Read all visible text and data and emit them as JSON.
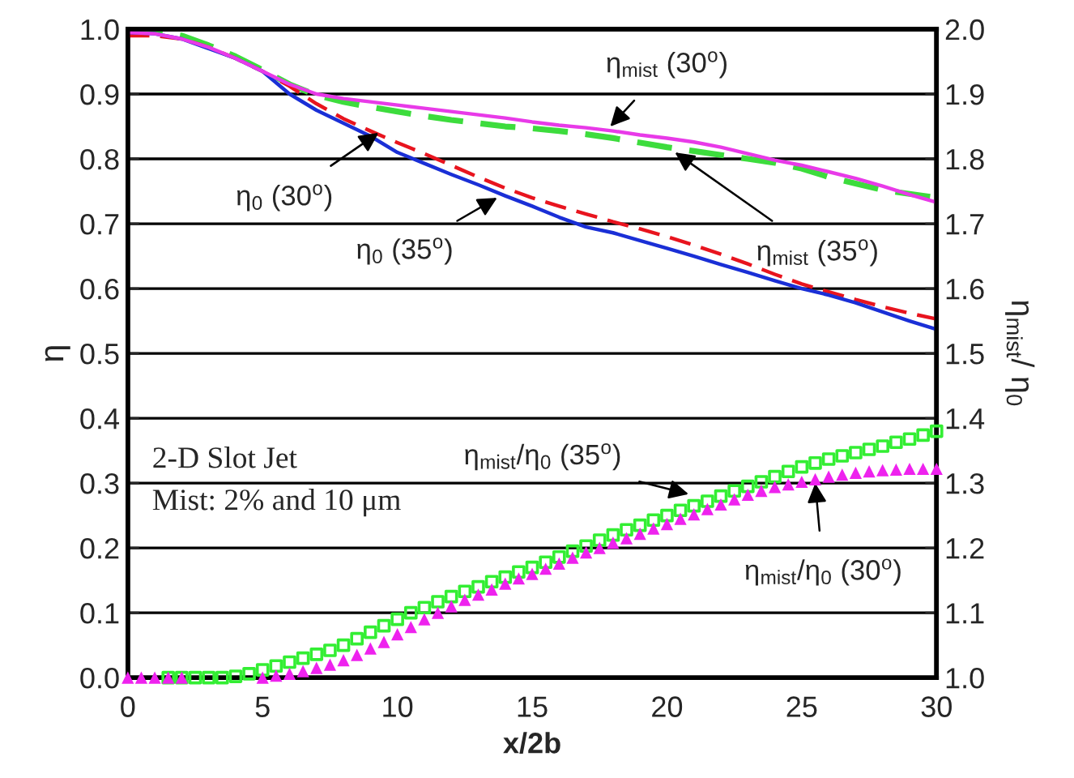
{
  "chart_data": {
    "type": "line",
    "xlabel": "x/2b",
    "ylabel": "η",
    "y2label": "η$_{mist}$/ η$_{0}$",
    "xlim": [
      0,
      30
    ],
    "xticks": [
      0,
      5,
      10,
      15,
      20,
      25,
      30
    ],
    "ylim": [
      0,
      1
    ],
    "yticks": [
      {
        "value": 0,
        "label": "0.0"
      },
      {
        "value": 0.1,
        "label": "0.1"
      },
      {
        "value": 0.2,
        "label": "0.2"
      },
      {
        "value": 0.3,
        "label": "0.3"
      },
      {
        "value": 0.4,
        "label": "0.4"
      },
      {
        "value": 0.5,
        "label": "0.5"
      },
      {
        "value": 0.6,
        "label": "0.6"
      },
      {
        "value": 0.7,
        "label": "0.7"
      },
      {
        "value": 0.8,
        "label": "0.8"
      },
      {
        "value": 0.9,
        "label": "0.9"
      },
      {
        "value": 1,
        "label": "1.0"
      }
    ],
    "y2lim": [
      1,
      2
    ],
    "y2ticks": [
      {
        "value": 1,
        "label": "1.0"
      },
      {
        "value": 1.1,
        "label": "1.1"
      },
      {
        "value": 1.2,
        "label": "1.2"
      },
      {
        "value": 1.3,
        "label": "1.3"
      },
      {
        "value": 1.4,
        "label": "1.4"
      },
      {
        "value": 1.5,
        "label": "1.5"
      },
      {
        "value": 1.6,
        "label": "1.6"
      },
      {
        "value": 1.7,
        "label": "1.7"
      },
      {
        "value": 1.8,
        "label": "1.8"
      },
      {
        "value": 1.9,
        "label": "1.9"
      },
      {
        "value": 2,
        "label": "2.0"
      }
    ],
    "grid": "y",
    "legend": false,
    "series": [
      {
        "type": "line",
        "color": "#e83ae8",
        "line_style": "solid",
        "marker": "none",
        "x": [
          0,
          1,
          2,
          3,
          4,
          5,
          6,
          7,
          8,
          9,
          10,
          11,
          12,
          13,
          14,
          15,
          16,
          17,
          18,
          19,
          20,
          21,
          22,
          23,
          24,
          25,
          26,
          27,
          28,
          29,
          30
        ],
        "values": [
          0.995,
          0.993,
          0.985,
          0.972,
          0.955,
          0.935,
          0.915,
          0.9,
          0.893,
          0.888,
          0.883,
          0.878,
          0.873,
          0.868,
          0.863,
          0.857,
          0.852,
          0.848,
          0.843,
          0.837,
          0.832,
          0.826,
          0.818,
          0.808,
          0.798,
          0.79,
          0.78,
          0.77,
          0.758,
          0.745,
          0.733
        ]
      },
      {
        "type": "line",
        "color": "#3ddc3d",
        "line_style": "dashed",
        "marker": "none",
        "x": [
          0,
          1,
          2,
          3,
          4,
          5,
          6,
          7,
          8,
          9,
          10,
          11,
          12,
          13,
          14,
          15,
          16,
          17,
          18,
          19,
          20,
          21,
          22,
          23,
          24,
          25,
          26,
          27,
          28,
          29,
          30
        ],
        "values": [
          1.0,
          0.998,
          0.99,
          0.975,
          0.958,
          0.937,
          0.915,
          0.898,
          0.888,
          0.88,
          0.873,
          0.866,
          0.86,
          0.855,
          0.85,
          0.847,
          0.843,
          0.838,
          0.832,
          0.825,
          0.818,
          0.812,
          0.806,
          0.8,
          0.794,
          0.785,
          0.772,
          0.762,
          0.752,
          0.746,
          0.74
        ]
      },
      {
        "type": "line",
        "color": "#e8141e",
        "line_style": "dashed",
        "marker": "none",
        "x": [
          0,
          1,
          2,
          3,
          4,
          5,
          6,
          7,
          8,
          9,
          10,
          11,
          12,
          13,
          14,
          15,
          16,
          17,
          18,
          19,
          20,
          21,
          22,
          23,
          24,
          25,
          26,
          27,
          28,
          29,
          30
        ],
        "values": [
          0.99,
          0.99,
          0.985,
          0.972,
          0.955,
          0.935,
          0.912,
          0.885,
          0.862,
          0.843,
          0.825,
          0.808,
          0.79,
          0.772,
          0.755,
          0.74,
          0.727,
          0.715,
          0.703,
          0.692,
          0.68,
          0.667,
          0.653,
          0.638,
          0.622,
          0.607,
          0.595,
          0.583,
          0.572,
          0.562,
          0.553
        ]
      },
      {
        "type": "line",
        "color": "#1a2fd6",
        "line_style": "solid",
        "marker": "none",
        "x": [
          0,
          1,
          2,
          3,
          4,
          5,
          6,
          7,
          8,
          9,
          10,
          11,
          12,
          13,
          14,
          15,
          16,
          17,
          18,
          19,
          20,
          21,
          22,
          23,
          24,
          25,
          26,
          27,
          28,
          29,
          30
        ],
        "values": [
          0.995,
          0.993,
          0.985,
          0.97,
          0.955,
          0.935,
          0.9,
          0.875,
          0.855,
          0.835,
          0.81,
          0.793,
          0.776,
          0.76,
          0.743,
          0.727,
          0.71,
          0.695,
          0.686,
          0.674,
          0.662,
          0.65,
          0.637,
          0.625,
          0.612,
          0.6,
          0.59,
          0.578,
          0.564,
          0.55,
          0.537
        ]
      },
      {
        "type": "scatter",
        "axis": "y2",
        "color": "#33ee33",
        "marker": "square",
        "x": [
          1.5,
          2,
          2.5,
          3,
          3.5,
          4,
          4.5,
          5,
          5.5,
          6,
          6.5,
          7,
          7.5,
          8,
          8.5,
          9,
          9.5,
          10,
          10.5,
          11,
          11.5,
          12,
          12.5,
          13,
          13.5,
          14,
          14.5,
          15,
          15.5,
          16,
          16.5,
          17,
          17.5,
          18,
          18.5,
          19,
          19.5,
          20,
          20.5,
          21,
          21.5,
          22,
          22.5,
          23,
          23.5,
          24,
          24.5,
          25,
          25.5,
          26,
          26.5,
          27,
          27.5,
          28,
          28.5,
          29,
          29.5,
          30
        ],
        "values": [
          1.0,
          1.0,
          1.0,
          1.0,
          1.0,
          1.002,
          1.006,
          1.012,
          1.018,
          1.024,
          1.03,
          1.036,
          1.042,
          1.05,
          1.06,
          1.07,
          1.08,
          1.09,
          1.1,
          1.108,
          1.117,
          1.125,
          1.133,
          1.14,
          1.148,
          1.155,
          1.163,
          1.17,
          1.178,
          1.186,
          1.195,
          1.203,
          1.212,
          1.22,
          1.228,
          1.235,
          1.243,
          1.25,
          1.258,
          1.265,
          1.272,
          1.28,
          1.288,
          1.295,
          1.302,
          1.31,
          1.318,
          1.325,
          1.331,
          1.337,
          1.342,
          1.347,
          1.352,
          1.357,
          1.363,
          1.368,
          1.374,
          1.38
        ]
      },
      {
        "type": "scatter",
        "axis": "y2",
        "color": "#ee22ee",
        "marker": "triangle",
        "x": [
          0,
          0.5,
          1,
          1.5,
          2,
          2.5,
          3,
          3.5,
          4,
          4.5,
          5,
          5.5,
          6,
          6.5,
          7,
          7.5,
          8,
          8.5,
          9,
          9.5,
          10,
          10.5,
          11,
          11.5,
          12,
          12.5,
          13,
          13.5,
          14,
          14.5,
          15,
          15.5,
          16,
          16.5,
          17,
          17.5,
          18,
          18.5,
          19,
          19.5,
          20,
          20.5,
          21,
          21.5,
          22,
          22.5,
          23,
          23.5,
          24,
          24.5,
          25,
          25.5,
          26,
          26.5,
          27,
          27.5,
          28,
          28.5,
          29,
          29.5,
          30
        ],
        "values": [
          1.0,
          1.0,
          1.0,
          1.0,
          1.0,
          null,
          null,
          null,
          null,
          null,
          1.0,
          1.003,
          1.006,
          1.01,
          1.015,
          1.02,
          1.027,
          1.035,
          1.045,
          1.055,
          1.067,
          1.078,
          1.09,
          1.1,
          1.11,
          1.12,
          1.128,
          1.136,
          1.145,
          1.153,
          1.16,
          1.168,
          1.176,
          1.185,
          1.193,
          1.2,
          1.208,
          1.215,
          1.222,
          1.23,
          1.237,
          1.245,
          1.252,
          1.26,
          1.267,
          1.275,
          1.282,
          1.288,
          1.294,
          1.298,
          1.302,
          1.306,
          1.31,
          1.313,
          1.316,
          1.318,
          1.32,
          1.321,
          1.322,
          1.322,
          1.322
        ]
      }
    ],
    "annotations": [
      {
        "text": "η$_{mist}$ (30$^{o}$)",
        "x": 17.9,
        "y": 0.85
      },
      {
        "text": "η$_{0}$ (30$^{o}$)",
        "x": 9.3,
        "y": 0.84
      },
      {
        "text": "η$_{0}$ (35$^{o}$)",
        "x": 13.7,
        "y": 0.74
      },
      {
        "text": "η$_{mist}$ (35$^{o}$)",
        "x": 20.3,
        "y": 0.81
      },
      {
        "text": "η$_{mist}$/η$_{0}$ (35$^{o}$)",
        "x": 20.8,
        "y": 0.283
      },
      {
        "text": "η$_{mist}$/η$_{0}$ (30$^{o}$)",
        "x": 25.5,
        "y": 0.3
      },
      "2-D Slot Jet",
      "Mist: 2% and 10 μm"
    ]
  }
}
